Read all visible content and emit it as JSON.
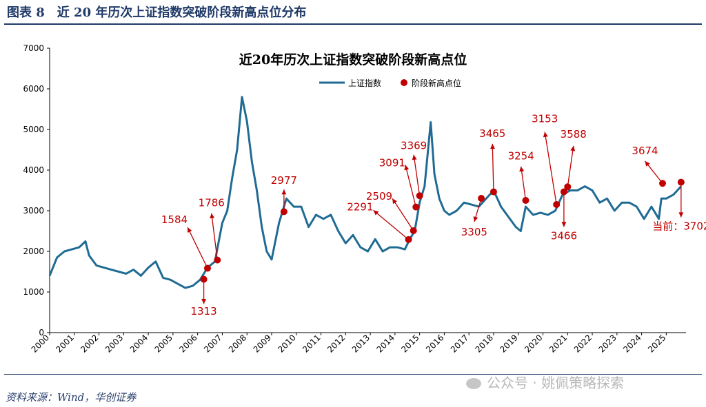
{
  "figure": {
    "title": "图表 8　近 20 年历次上证指数突破阶段新高点位分布",
    "source": "资料来源：Wind，华创证券",
    "watermark": "公众号 · 姚佩策略探索"
  },
  "colors": {
    "line": "#1f6b94",
    "point": "#c00000",
    "annotation": "#c00000",
    "header": "#1f3a68",
    "axis": "#000000"
  },
  "chart_data": {
    "type": "line",
    "title": "近20年历次上证指数突破阶段新高点位",
    "legend": {
      "placement": "top-right",
      "entries": [
        "上证指数",
        "阶段新高点位"
      ]
    },
    "xlabel": "",
    "ylabel": "",
    "ylim": [
      0,
      7000
    ],
    "xlim": [
      2000,
      2025.8
    ],
    "yticks": [
      "0",
      "1000",
      "2000",
      "3000",
      "4000",
      "5000",
      "6000",
      "7000"
    ],
    "xticks": [
      "2000",
      "2001",
      "2002",
      "2003",
      "2004",
      "2005",
      "2006",
      "2007",
      "2008",
      "2009",
      "2010",
      "2011",
      "2012",
      "2013",
      "2014",
      "2015",
      "2016",
      "2017",
      "2018",
      "2019",
      "2020",
      "2021",
      "2022",
      "2023",
      "2024",
      "2025"
    ],
    "grid": false,
    "series": [
      {
        "name": "上证指数",
        "x": [
          2000.0,
          2000.3,
          2000.6,
          2000.9,
          2001.2,
          2001.45,
          2001.6,
          2001.9,
          2002.2,
          2002.5,
          2002.8,
          2003.1,
          2003.4,
          2003.7,
          2004.0,
          2004.3,
          2004.6,
          2004.9,
          2005.2,
          2005.5,
          2005.8,
          2006.1,
          2006.4,
          2006.7,
          2007.0,
          2007.2,
          2007.4,
          2007.6,
          2007.8,
          2008.0,
          2008.2,
          2008.4,
          2008.6,
          2008.8,
          2009.0,
          2009.3,
          2009.6,
          2009.9,
          2010.2,
          2010.5,
          2010.8,
          2011.1,
          2011.4,
          2011.7,
          2012.0,
          2012.3,
          2012.6,
          2012.9,
          2013.2,
          2013.5,
          2013.8,
          2014.1,
          2014.4,
          2014.6,
          2014.8,
          2015.0,
          2015.2,
          2015.45,
          2015.6,
          2015.8,
          2016.0,
          2016.2,
          2016.5,
          2016.8,
          2017.1,
          2017.4,
          2017.7,
          2018.0,
          2018.3,
          2018.6,
          2018.9,
          2019.1,
          2019.3,
          2019.6,
          2019.9,
          2020.2,
          2020.5,
          2020.8,
          2021.1,
          2021.4,
          2021.7,
          2022.0,
          2022.3,
          2022.6,
          2022.9,
          2023.2,
          2023.5,
          2023.8,
          2024.1,
          2024.4,
          2024.7,
          2024.8,
          2025.0,
          2025.3,
          2025.6
        ],
        "y": [
          1400,
          1850,
          2000,
          2050,
          2100,
          2245,
          1900,
          1650,
          1600,
          1550,
          1500,
          1450,
          1550,
          1400,
          1600,
          1750,
          1350,
          1300,
          1200,
          1100,
          1150,
          1300,
          1600,
          1750,
          2700,
          3000,
          3800,
          4500,
          5800,
          5200,
          4200,
          3500,
          2600,
          2000,
          1800,
          2700,
          3300,
          3100,
          3100,
          2600,
          2900,
          2800,
          2900,
          2500,
          2200,
          2400,
          2100,
          2000,
          2300,
          2000,
          2100,
          2100,
          2050,
          2300,
          2500,
          3200,
          3600,
          5178,
          3900,
          3300,
          3000,
          2900,
          3000,
          3200,
          3150,
          3100,
          3300,
          3500,
          3100,
          2850,
          2600,
          2500,
          3100,
          2900,
          2950,
          2900,
          3000,
          3400,
          3500,
          3500,
          3600,
          3500,
          3200,
          3300,
          3000,
          3200,
          3200,
          3100,
          2800,
          3100,
          2800,
          3300,
          3300,
          3400,
          3600
        ]
      },
      {
        "name": "阶段新高点位",
        "points": [
          {
            "x": 2006.25,
            "y": 1313,
            "label": "1313"
          },
          {
            "x": 2006.4,
            "y": 1584,
            "label": "1584"
          },
          {
            "x": 2006.8,
            "y": 1786,
            "label": "1786"
          },
          {
            "x": 2009.5,
            "y": 2977,
            "label": "2977"
          },
          {
            "x": 2014.55,
            "y": 2291,
            "label": "2291"
          },
          {
            "x": 2014.75,
            "y": 2509,
            "label": "2509"
          },
          {
            "x": 2014.85,
            "y": 3091,
            "label": "3091"
          },
          {
            "x": 2015.0,
            "y": 3369,
            "label": "3369"
          },
          {
            "x": 2017.5,
            "y": 3305,
            "label": "3305"
          },
          {
            "x": 2018.0,
            "y": 3465,
            "label": "3465"
          },
          {
            "x": 2019.3,
            "y": 3254,
            "label": "3254"
          },
          {
            "x": 2020.55,
            "y": 3153,
            "label": "3153"
          },
          {
            "x": 2020.85,
            "y": 3466,
            "label": "3466"
          },
          {
            "x": 2021.0,
            "y": 3588,
            "label": "3588"
          },
          {
            "x": 2024.85,
            "y": 3674,
            "label": "3674"
          },
          {
            "x": 2025.6,
            "y": 3702,
            "label": "当前：3702"
          }
        ]
      }
    ]
  }
}
